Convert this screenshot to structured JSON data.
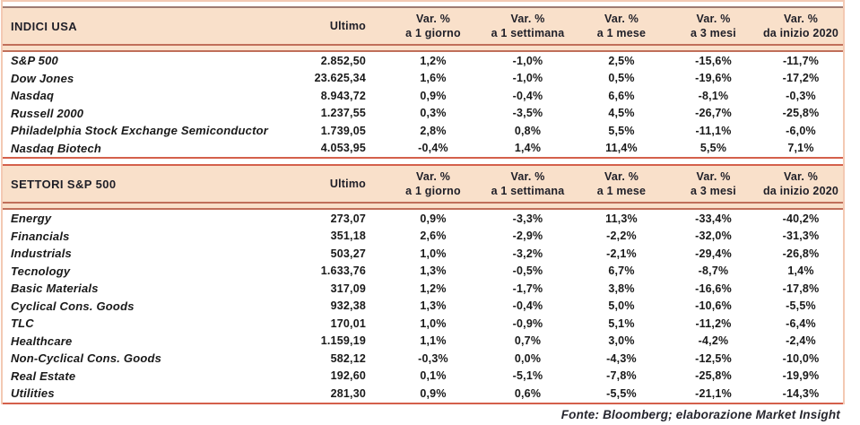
{
  "colors": {
    "header_bg": "#f9e0ca",
    "section1_top_line": "#9d7a72",
    "header_double_line": "#c06f5a",
    "section_divider_red": "#d4604b",
    "side_edge": "#f3c9b3",
    "header_text": "#1f1f28",
    "body_text": "#191919"
  },
  "footer": {
    "source_label": "Fonte: Bloomberg; elaborazione Market Insight"
  },
  "chart_data": [
    {
      "type": "table",
      "section_title": "INDICI USA",
      "col_ultimo": "Ultimo",
      "var_label": "Var. %",
      "var_periods": [
        "a 1 giorno",
        "a 1 settimana",
        "a 1 mese",
        "a 3 mesi",
        "da inizio 2020"
      ],
      "rows": [
        {
          "name": "S&P 500",
          "ultimo": "2.852,50",
          "values": [
            "1,2%",
            "-1,0%",
            "2,5%",
            "-15,6%",
            "-11,7%"
          ]
        },
        {
          "name": "Dow Jones",
          "ultimo": "23.625,34",
          "values": [
            "1,6%",
            "-1,0%",
            "0,5%",
            "-19,6%",
            "-17,2%"
          ]
        },
        {
          "name": "Nasdaq",
          "ultimo": "8.943,72",
          "values": [
            "0,9%",
            "-0,4%",
            "6,6%",
            "-8,1%",
            "-0,3%"
          ]
        },
        {
          "name": "Russell 2000",
          "ultimo": "1.237,55",
          "values": [
            "0,3%",
            "-3,5%",
            "4,5%",
            "-26,7%",
            "-25,8%"
          ]
        },
        {
          "name": "Philadelphia Stock Exchange Semiconductor",
          "ultimo": "1.739,05",
          "values": [
            "2,8%",
            "0,8%",
            "5,5%",
            "-11,1%",
            "-6,0%"
          ]
        },
        {
          "name": "Nasdaq Biotech",
          "ultimo": "4.053,95",
          "values": [
            "-0,4%",
            "1,4%",
            "11,4%",
            "5,5%",
            "7,1%"
          ]
        }
      ]
    },
    {
      "type": "table",
      "section_title": "SETTORI S&P 500",
      "col_ultimo": "Ultimo",
      "var_label": "Var. %",
      "var_periods": [
        "a 1 giorno",
        "a 1 settimana",
        "a 1 mese",
        "a 3 mesi",
        "da inizio 2020"
      ],
      "rows": [
        {
          "name": "Energy",
          "ultimo": "273,07",
          "values": [
            "0,9%",
            "-3,3%",
            "11,3%",
            "-33,4%",
            "-40,2%"
          ]
        },
        {
          "name": "Financials",
          "ultimo": "351,18",
          "values": [
            "2,6%",
            "-2,9%",
            "-2,2%",
            "-32,0%",
            "-31,3%"
          ]
        },
        {
          "name": "Industrials",
          "ultimo": "503,27",
          "values": [
            "1,0%",
            "-3,2%",
            "-2,1%",
            "-29,4%",
            "-26,8%"
          ]
        },
        {
          "name": "Tecnology",
          "ultimo": "1.633,76",
          "values": [
            "1,3%",
            "-0,5%",
            "6,7%",
            "-8,7%",
            "1,4%"
          ]
        },
        {
          "name": "Basic Materials",
          "ultimo": "317,09",
          "values": [
            "1,2%",
            "-1,7%",
            "3,8%",
            "-16,6%",
            "-17,8%"
          ]
        },
        {
          "name": "Cyclical Cons. Goods",
          "ultimo": "932,38",
          "values": [
            "1,3%",
            "-0,4%",
            "5,0%",
            "-10,6%",
            "-5,5%"
          ]
        },
        {
          "name": "TLC",
          "ultimo": "170,01",
          "values": [
            "1,0%",
            "-0,9%",
            "5,1%",
            "-11,2%",
            "-6,4%"
          ]
        },
        {
          "name": "Healthcare",
          "ultimo": "1.159,19",
          "values": [
            "1,1%",
            "0,7%",
            "3,0%",
            "-4,2%",
            "-2,4%"
          ]
        },
        {
          "name": "Non-Cyclical Cons. Goods",
          "ultimo": "582,12",
          "values": [
            "-0,3%",
            "0,0%",
            "-4,3%",
            "-12,5%",
            "-10,0%"
          ]
        },
        {
          "name": "Real Estate",
          "ultimo": "192,60",
          "values": [
            "0,1%",
            "-5,1%",
            "-7,8%",
            "-25,8%",
            "-19,9%"
          ]
        },
        {
          "name": "Utilities",
          "ultimo": "281,30",
          "values": [
            "0,9%",
            "0,6%",
            "-5,5%",
            "-21,1%",
            "-14,3%"
          ]
        }
      ]
    }
  ]
}
